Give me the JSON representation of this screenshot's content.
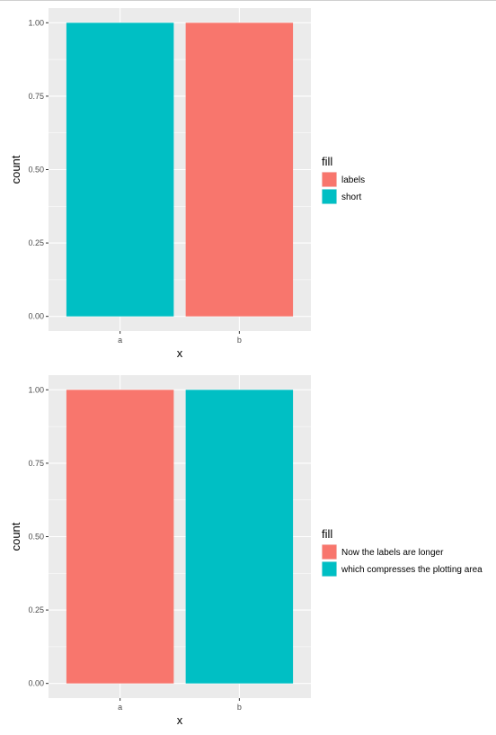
{
  "chart_data": [
    {
      "type": "bar",
      "categories": [
        "a",
        "b"
      ],
      "series": [
        {
          "name": "labels",
          "color": "#F8766D"
        },
        {
          "name": "short",
          "color": "#00BFC4"
        }
      ],
      "bars": [
        {
          "category": "a",
          "value": 1.0,
          "fill": "short"
        },
        {
          "category": "b",
          "value": 1.0,
          "fill": "labels"
        }
      ],
      "xlabel": "x",
      "ylabel": "count",
      "ylim": [
        0,
        1.0
      ],
      "y_ticks": [
        "0.00",
        "0.25",
        "0.50",
        "0.75",
        "1.00"
      ],
      "y_tick_values": [
        0,
        0.25,
        0.5,
        0.75,
        1.0
      ],
      "legend_title": "fill",
      "legend_position": "right",
      "grid": true
    },
    {
      "type": "bar",
      "categories": [
        "a",
        "b"
      ],
      "series": [
        {
          "name": "Now the labels are longer",
          "color": "#F8766D"
        },
        {
          "name": "which compresses the plotting area",
          "color": "#00BFC4"
        }
      ],
      "bars": [
        {
          "category": "a",
          "value": 1.0,
          "fill": "Now the labels are longer"
        },
        {
          "category": "b",
          "value": 1.0,
          "fill": "which compresses the plotting area"
        }
      ],
      "xlabel": "x",
      "ylabel": "count",
      "ylim": [
        0,
        1.0
      ],
      "y_ticks": [
        "0.00",
        "0.25",
        "0.50",
        "0.75",
        "1.00"
      ],
      "y_tick_values": [
        0,
        0.25,
        0.5,
        0.75,
        1.0
      ],
      "legend_title": "fill",
      "legend_position": "right",
      "grid": true
    }
  ]
}
